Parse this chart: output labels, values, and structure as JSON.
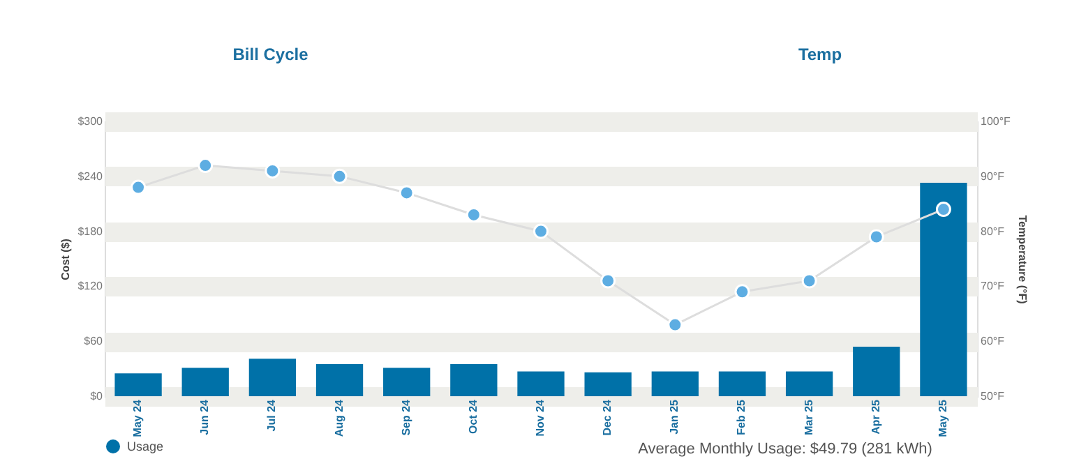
{
  "chart_data": {
    "type": "bar",
    "categories": [
      "May 24",
      "Jun 24",
      "Jul 24",
      "Aug 24",
      "Sep 24",
      "Oct 24",
      "Nov 24",
      "Dec 24",
      "Jan 25",
      "Feb 25",
      "Mar 25",
      "Apr 25",
      "May 25"
    ],
    "series": [
      {
        "name": "Usage",
        "color": "#0071a8",
        "values": [
          25,
          31,
          41,
          35,
          31,
          35,
          27,
          26,
          27,
          27,
          27,
          54,
          233
        ]
      },
      {
        "type": "line",
        "axis": "y2",
        "color": "#5dade2",
        "marker": "circle",
        "values": [
          88,
          92,
          91,
          90,
          87,
          83,
          80,
          71,
          63,
          69,
          71,
          79,
          84
        ]
      }
    ],
    "ylabel": "Cost ($)",
    "y2label": "Temperature (°F)",
    "ylim": [
      0,
      300
    ],
    "yticks": [
      {
        "value": 0,
        "label": "$0"
      },
      {
        "value": 60,
        "label": "$60"
      },
      {
        "value": 120,
        "label": "$120"
      },
      {
        "value": 180,
        "label": "$180"
      },
      {
        "value": 240,
        "label": "$240"
      },
      {
        "value": 300,
        "label": "$300"
      }
    ],
    "y2lim": [
      50,
      100
    ],
    "y2ticks": [
      {
        "value": 50,
        "label": "50°F"
      },
      {
        "value": 60,
        "label": "60°F"
      },
      {
        "value": 70,
        "label": "70°F"
      },
      {
        "value": 80,
        "label": "80°F"
      },
      {
        "value": 90,
        "label": "90°F"
      },
      {
        "value": 100,
        "label": "100°F"
      }
    ],
    "grid": "y",
    "legend": "bottom left",
    "annotations": [
      "Bill Cycle",
      "Temp",
      "Average Monthly Usage: $49.79 (281 kWh)"
    ]
  }
}
